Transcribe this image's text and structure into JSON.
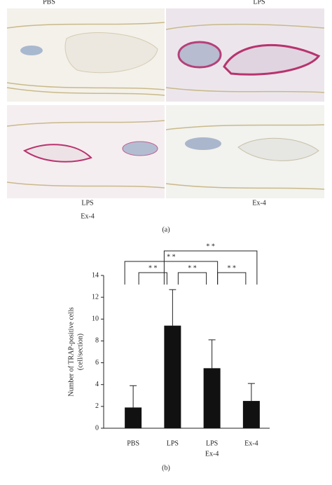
{
  "panel_a": {
    "column_labels": [
      "PBS",
      "LPS"
    ],
    "row2_left_label": [
      "LPS",
      "Ex-4"
    ],
    "row2_right_label": "Ex-4",
    "caption": "(a)"
  },
  "chart_data": {
    "type": "bar",
    "ylabel": [
      "Number of TRAP-positive cells",
      "(cell/section)"
    ],
    "categories": [
      [
        "PBS"
      ],
      [
        "LPS"
      ],
      [
        "LPS",
        "Ex-4"
      ],
      [
        "Ex-4"
      ]
    ],
    "values": [
      1.9,
      9.4,
      5.5,
      2.5
    ],
    "errors": [
      2.0,
      3.3,
      2.6,
      1.6
    ],
    "color": "#111111",
    "ylim": [
      0,
      14
    ],
    "yticks": [
      0,
      2,
      4,
      6,
      8,
      10,
      12,
      14
    ],
    "significance": [
      {
        "pair": [
          0,
          1
        ],
        "label": "* *"
      },
      {
        "pair": [
          1,
          2
        ],
        "label": "* *"
      },
      {
        "pair": [
          2,
          3
        ],
        "label": "* *"
      },
      {
        "pair": [
          0,
          2
        ],
        "label": "* *"
      },
      {
        "pair": [
          1,
          3
        ],
        "label": "* *"
      }
    ],
    "caption": "(b)"
  }
}
